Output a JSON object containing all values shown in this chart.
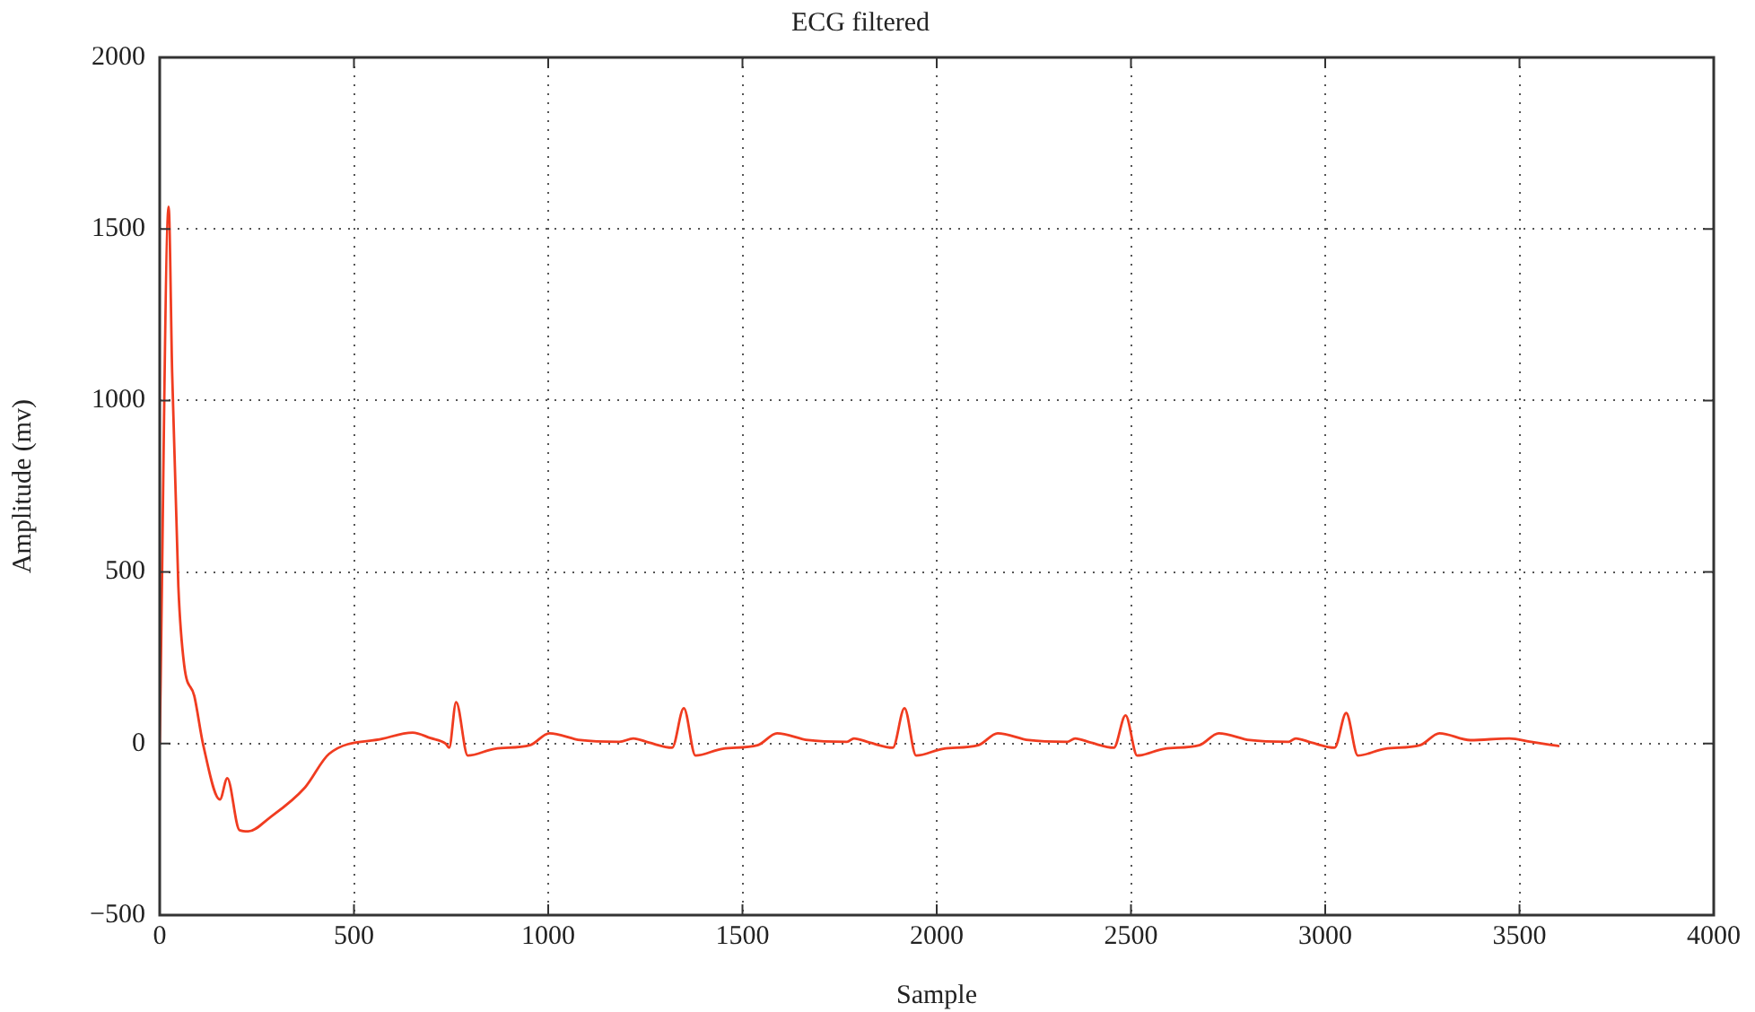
{
  "chart_data": {
    "type": "line",
    "title": "ECG filtered",
    "xlabel": "Sample",
    "ylabel": "Amplitude (mv)",
    "xlim": [
      0,
      4000
    ],
    "xticks": [
      0,
      500,
      1000,
      1500,
      2000,
      2500,
      3000,
      3500,
      4000
    ],
    "ylim": [
      -500,
      2000
    ],
    "yticks": [
      {
        "value": -500,
        "label": "−500"
      },
      0,
      500,
      1000,
      1500,
      2000
    ],
    "grid": true,
    "line_style": "solid",
    "marker": "none",
    "x": [
      0,
      23,
      32,
      48,
      63,
      89,
      112,
      155,
      174,
      205,
      228,
      282,
      374,
      436,
      574,
      651,
      697,
      736,
      745,
      763,
      793,
      863,
      953,
      1003,
      1083,
      1183,
      1219,
      1259,
      1319,
      1349,
      1379,
      1449,
      1539,
      1589,
      1669,
      1769,
      1787,
      1827,
      1887,
      1917,
      1947,
      2017,
      2107,
      2157,
      2237,
      2337,
      2356,
      2396,
      2456,
      2486,
      2516,
      2586,
      2676,
      2726,
      2806,
      2906,
      2924,
      2964,
      3024,
      3054,
      3084,
      3154,
      3244,
      3294,
      3374,
      3474,
      3530,
      3600
    ],
    "series": [
      {
        "color": "#f03c20",
        "values": [
          0,
          1565,
          1082,
          458,
          229,
          139,
          -4,
          -163,
          -101,
          -252,
          -256,
          -217,
          -128,
          -30,
          14,
          32,
          16,
          0,
          -12,
          121,
          -35,
          -15,
          -5,
          30,
          10,
          5,
          15,
          3,
          -12,
          103,
          -35,
          -15,
          -5,
          30,
          10,
          5,
          15,
          3,
          -12,
          103,
          -35,
          -15,
          -5,
          30,
          10,
          5,
          15,
          3,
          -12,
          82,
          -35,
          -15,
          -5,
          30,
          10,
          5,
          15,
          3,
          -12,
          89,
          -35,
          -15,
          -5,
          30,
          10,
          15,
          5,
          -7
        ]
      }
    ]
  }
}
